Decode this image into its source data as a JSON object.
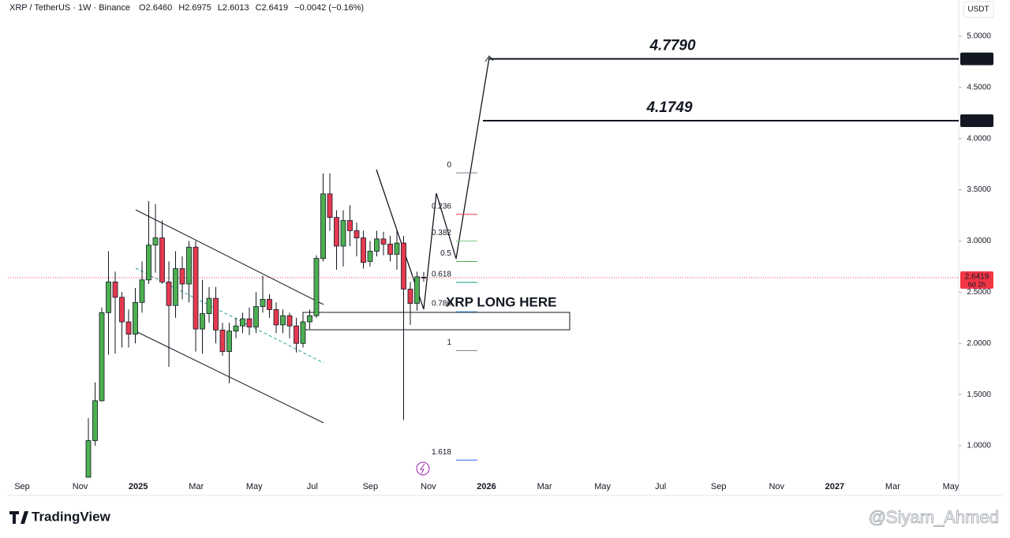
{
  "chart_data": {
    "type": "candlestick",
    "symbol": "XRP / TetherUS · 1W · Binance",
    "ohlc_header": [
      "O2.6460",
      "H2.6975",
      "L2.6013",
      "C2.6419",
      "−0.0042 (−0.16%)"
    ],
    "currency": "USDT",
    "up_color": "#26a69a",
    "down_color": "#ef5350",
    "candle_up_fill": "#4caf50",
    "candle_down_fill": "#e53950",
    "open": [
      0.69,
      1.05,
      1.44,
      2.3,
      2.6,
      2.45,
      2.21,
      2.09,
      2.4,
      2.62,
      2.96,
      3.03,
      2.6,
      2.37,
      2.73,
      2.58,
      2.94,
      2.14,
      2.29,
      2.44,
      2.13,
      1.92,
      2.12,
      2.17,
      2.24,
      2.16,
      2.36,
      2.43,
      2.33,
      2.18,
      2.27,
      2.17,
      2.0,
      2.21,
      2.27,
      2.83,
      3.46,
      3.23,
      2.95,
      3.2,
      3.1,
      3.03,
      2.8,
      2.9,
      3.02,
      2.97,
      2.87,
      2.98,
      2.53,
      2.39,
      2.646
    ],
    "high": [
      1.27,
      1.62,
      2.35,
      2.9,
      2.7,
      2.5,
      2.33,
      2.54,
      2.8,
      3.39,
      3.36,
      3.2,
      2.8,
      2.9,
      2.85,
      3.0,
      3.0,
      2.62,
      2.55,
      2.55,
      2.2,
      2.2,
      2.25,
      2.3,
      2.35,
      2.5,
      2.66,
      2.48,
      2.4,
      2.33,
      2.3,
      2.25,
      2.28,
      2.33,
      2.86,
      3.66,
      3.66,
      3.3,
      3.3,
      3.35,
      3.18,
      3.1,
      3.0,
      3.1,
      3.09,
      3.05,
      3.1,
      3.05,
      2.6,
      2.7,
      2.6975
    ],
    "low": [
      0.62,
      1.0,
      1.43,
      1.89,
      1.9,
      1.96,
      1.96,
      2.0,
      2.3,
      2.58,
      2.69,
      2.58,
      1.77,
      2.25,
      2.43,
      2.4,
      1.92,
      1.9,
      2.2,
      2.0,
      1.88,
      1.61,
      2.05,
      2.1,
      2.08,
      2.1,
      2.3,
      2.25,
      2.1,
      2.1,
      2.05,
      1.91,
      1.96,
      2.14,
      2.25,
      2.8,
      3.1,
      2.72,
      2.75,
      2.95,
      2.85,
      2.73,
      2.75,
      2.85,
      2.86,
      2.8,
      2.72,
      1.25,
      2.18,
      2.32,
      2.6013
    ],
    "close": [
      1.05,
      1.44,
      2.3,
      2.6,
      2.45,
      2.21,
      2.09,
      2.4,
      2.62,
      2.96,
      3.03,
      2.6,
      2.37,
      2.73,
      2.58,
      2.94,
      2.14,
      2.29,
      2.44,
      2.13,
      1.92,
      2.12,
      2.17,
      2.24,
      2.16,
      2.36,
      2.43,
      2.33,
      2.18,
      2.27,
      2.17,
      2.0,
      2.21,
      2.27,
      2.83,
      3.46,
      3.23,
      2.95,
      3.2,
      3.1,
      3.03,
      2.79,
      2.9,
      3.02,
      2.97,
      2.87,
      2.98,
      2.53,
      2.39,
      2.65,
      2.6419
    ],
    "ylim": [
      0.692,
      5.354
    ],
    "yticks": [
      {
        "value": 1,
        "label": "1.0000"
      },
      {
        "value": 1.5,
        "label": "1.5000"
      },
      {
        "value": 2,
        "label": "2.0000"
      },
      {
        "value": 2.5,
        "label": "2.5000"
      },
      {
        "value": 3,
        "label": "3.0000"
      },
      {
        "value": 3.5,
        "label": "3.5000"
      },
      {
        "value": 4,
        "label": "4.0000"
      },
      {
        "value": 4.5,
        "label": "4.5000"
      },
      {
        "value": 5,
        "label": "5.0000"
      }
    ],
    "xtick_labels": [
      "Sep",
      "Nov",
      "2025",
      "Mar",
      "May",
      "Jul",
      "Sep",
      "Nov",
      "2026",
      "Mar",
      "May",
      "Jul",
      "Sep",
      "Nov",
      "2027",
      "Mar",
      "May"
    ],
    "last_price": {
      "value": 2.6419,
      "label": "2.6419",
      "countdown": "6d 2h",
      "color": "#f23645"
    },
    "targets": [
      {
        "value": 4.779,
        "label": "4.7790"
      },
      {
        "value": 4.1749,
        "label": "4.1749"
      }
    ],
    "fib_levels": [
      {
        "level": 0,
        "price": 3.665,
        "color": "#787b86"
      },
      {
        "level": 0.236,
        "price": 3.26,
        "color": "#f23645"
      },
      {
        "level": 0.382,
        "price": 3.0,
        "color": "#81c784"
      },
      {
        "level": 0.5,
        "price": 2.8,
        "color": "#4caf50"
      },
      {
        "level": 0.618,
        "price": 2.595,
        "color": "#089981"
      },
      {
        "level": 0.786,
        "price": 2.31,
        "color": "#64b5f6"
      },
      {
        "level": 1,
        "price": 1.93,
        "color": "#787b86"
      },
      {
        "level": 1.618,
        "price": 0.86,
        "color": "#2962ff"
      }
    ],
    "annotation": "XRP LONG HERE",
    "brand": "TradingView",
    "watermark": "@Siyam_Ahmed"
  }
}
